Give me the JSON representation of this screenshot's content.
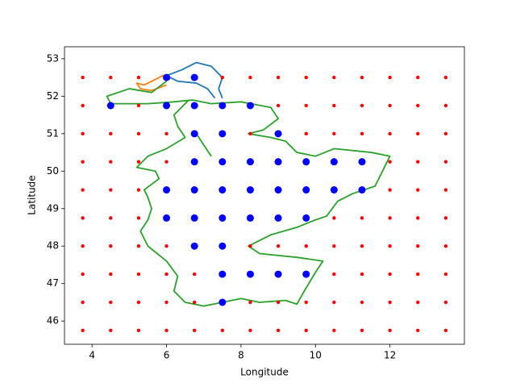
{
  "chart_data": {
    "type": "scatter",
    "xlabel": "Longitude",
    "ylabel": "Latitude",
    "xlim": [
      3.26,
      14.0
    ],
    "ylim": [
      45.38,
      53.32
    ],
    "xticks": [
      4,
      6,
      8,
      10,
      12
    ],
    "yticks": [
      46,
      47,
      48,
      49,
      50,
      51,
      52,
      53
    ],
    "series": [
      {
        "mode": "line",
        "color": "#1f77b4",
        "x": [
          7.3,
          7.1,
          6.8,
          6.3,
          6.0,
          6.4,
          6.8,
          7.2,
          7.5,
          7.4,
          7.5
        ],
        "y": [
          51.95,
          52.2,
          52.35,
          52.4,
          52.55,
          52.7,
          52.9,
          52.8,
          52.5,
          52.2,
          51.95
        ]
      },
      {
        "mode": "line",
        "color": "#ff7f0e",
        "x": [
          6.1,
          5.9,
          5.6,
          5.4,
          5.2,
          5.3,
          5.6,
          6.0
        ],
        "y": [
          52.45,
          52.55,
          52.4,
          52.3,
          52.35,
          52.2,
          52.15,
          52.3
        ]
      },
      {
        "mode": "line",
        "color": "#2ca02c",
        "x": [
          6.0,
          5.6,
          5.0,
          4.4,
          4.5,
          5.5,
          6.2,
          6.7,
          7.2,
          8.0,
          8.8,
          9.0,
          8.6,
          8.2,
          8.8,
          9.2,
          9.5,
          10.0,
          10.5,
          11.5,
          12.0,
          11.8,
          11.6,
          11.0,
          10.6,
          10.3,
          10.0,
          9.5,
          8.8,
          8.2,
          8.5,
          9.5,
          10.2,
          10.0,
          9.7,
          9.5,
          9.2,
          8.5,
          8.0,
          7.5,
          7.0,
          6.5,
          6.2,
          6.3,
          6.0,
          5.5,
          5.3,
          5.5,
          5.6,
          5.5,
          5.4,
          5.8,
          5.7,
          5.2,
          5.5,
          6.0,
          6.5,
          6.3,
          6.2,
          6.6,
          null,
          6.8,
          7.2
        ],
        "y": [
          52.4,
          52.1,
          52.2,
          52.0,
          51.8,
          51.8,
          51.85,
          51.9,
          51.8,
          51.85,
          51.7,
          51.4,
          51.1,
          51.0,
          50.9,
          50.8,
          50.5,
          50.4,
          50.6,
          50.5,
          50.4,
          50.0,
          49.6,
          49.4,
          49.2,
          48.8,
          48.7,
          48.5,
          48.3,
          48.0,
          47.8,
          47.7,
          47.6,
          47.3,
          46.8,
          46.45,
          46.55,
          46.5,
          46.6,
          46.5,
          46.4,
          46.5,
          46.8,
          47.2,
          47.6,
          48.0,
          48.4,
          48.7,
          49.0,
          49.3,
          49.5,
          49.8,
          50.0,
          50.1,
          50.4,
          50.6,
          50.9,
          51.2,
          51.5,
          51.9,
          null,
          51.0,
          50.4
        ]
      },
      {
        "mode": "markers",
        "color": "#ff0000",
        "x": [
          3.75,
          4.5,
          5.25,
          6.0,
          6.75,
          7.5,
          8.25,
          9.0,
          9.75,
          10.5,
          11.25,
          12.0,
          12.75,
          13.5,
          3.75,
          4.5,
          5.25,
          6.0,
          6.75,
          7.5,
          8.25,
          9.0,
          9.75,
          10.5,
          11.25,
          12.0,
          12.75,
          13.5,
          3.75,
          4.5,
          5.25,
          6.0,
          6.75,
          7.5,
          8.25,
          9.0,
          9.75,
          10.5,
          11.25,
          12.0,
          12.75,
          13.5,
          3.75,
          4.5,
          5.25,
          6.0,
          6.75,
          7.5,
          8.25,
          9.0,
          9.75,
          10.5,
          11.25,
          12.0,
          12.75,
          13.5,
          3.75,
          4.5,
          5.25,
          6.0,
          6.75,
          7.5,
          8.25,
          9.0,
          9.75,
          10.5,
          11.25,
          12.0,
          12.75,
          13.5,
          3.75,
          4.5,
          5.25,
          6.0,
          6.75,
          7.5,
          8.25,
          9.0,
          9.75,
          10.5,
          11.25,
          12.0,
          12.75,
          13.5,
          3.75,
          4.5,
          5.25,
          6.0,
          6.75,
          7.5,
          8.25,
          9.0,
          9.75,
          10.5,
          11.25,
          12.0,
          12.75,
          13.5,
          3.75,
          4.5,
          5.25,
          6.0,
          6.75,
          7.5,
          8.25,
          9.0,
          9.75,
          10.5,
          11.25,
          12.0,
          12.75,
          13.5,
          3.75,
          4.5,
          5.25,
          6.0,
          6.75,
          7.5,
          8.25,
          9.0,
          9.75,
          10.5,
          11.25,
          12.0,
          12.75,
          13.5,
          3.75,
          4.5,
          5.25,
          6.0,
          6.75,
          7.5,
          8.25,
          9.0,
          9.75,
          10.5,
          11.25,
          12.0,
          12.75,
          13.5
        ],
        "y": [
          45.75,
          45.75,
          45.75,
          45.75,
          45.75,
          45.75,
          45.75,
          45.75,
          45.75,
          45.75,
          45.75,
          45.75,
          45.75,
          45.75,
          46.5,
          46.5,
          46.5,
          46.5,
          46.5,
          46.5,
          46.5,
          46.5,
          46.5,
          46.5,
          46.5,
          46.5,
          46.5,
          46.5,
          47.25,
          47.25,
          47.25,
          47.25,
          47.25,
          47.25,
          47.25,
          47.25,
          47.25,
          47.25,
          47.25,
          47.25,
          47.25,
          47.25,
          48.0,
          48.0,
          48.0,
          48.0,
          48.0,
          48.0,
          48.0,
          48.0,
          48.0,
          48.0,
          48.0,
          48.0,
          48.0,
          48.0,
          48.75,
          48.75,
          48.75,
          48.75,
          48.75,
          48.75,
          48.75,
          48.75,
          48.75,
          48.75,
          48.75,
          48.75,
          48.75,
          48.75,
          49.5,
          49.5,
          49.5,
          49.5,
          49.5,
          49.5,
          49.5,
          49.5,
          49.5,
          49.5,
          49.5,
          49.5,
          49.5,
          49.5,
          50.25,
          50.25,
          50.25,
          50.25,
          50.25,
          50.25,
          50.25,
          50.25,
          50.25,
          50.25,
          50.25,
          50.25,
          50.25,
          50.25,
          51.0,
          51.0,
          51.0,
          51.0,
          51.0,
          51.0,
          51.0,
          51.0,
          51.0,
          51.0,
          51.0,
          51.0,
          51.0,
          51.0,
          51.75,
          51.75,
          51.75,
          51.75,
          51.75,
          51.75,
          51.75,
          51.75,
          51.75,
          51.75,
          51.75,
          51.75,
          51.75,
          51.75,
          52.5,
          52.5,
          52.5,
          52.5,
          52.5,
          52.5,
          52.5,
          52.5,
          52.5,
          52.5,
          52.5,
          52.5,
          52.5,
          52.5
        ]
      },
      {
        "mode": "markers",
        "color": "#0000ff",
        "x": [
          6.0,
          6.75,
          4.5,
          6.0,
          6.75,
          7.5,
          8.25,
          6.75,
          7.5,
          9.0,
          6.75,
          7.5,
          8.25,
          9.0,
          9.75,
          10.5,
          11.25,
          6.0,
          6.75,
          7.5,
          8.25,
          9.0,
          9.75,
          10.5,
          11.25,
          6.0,
          6.75,
          7.5,
          8.25,
          9.0,
          9.75,
          6.75,
          7.5,
          7.5,
          8.25,
          9.0,
          9.75,
          7.5
        ],
        "y": [
          52.5,
          52.5,
          51.75,
          51.75,
          51.75,
          51.75,
          51.75,
          51.0,
          51.0,
          51.0,
          50.25,
          50.25,
          50.25,
          50.25,
          50.25,
          50.25,
          50.25,
          49.5,
          49.5,
          49.5,
          49.5,
          49.5,
          49.5,
          49.5,
          49.5,
          48.75,
          48.75,
          48.75,
          48.75,
          48.75,
          48.75,
          48.0,
          48.0,
          47.25,
          47.25,
          47.25,
          47.25,
          46.5
        ]
      }
    ]
  }
}
